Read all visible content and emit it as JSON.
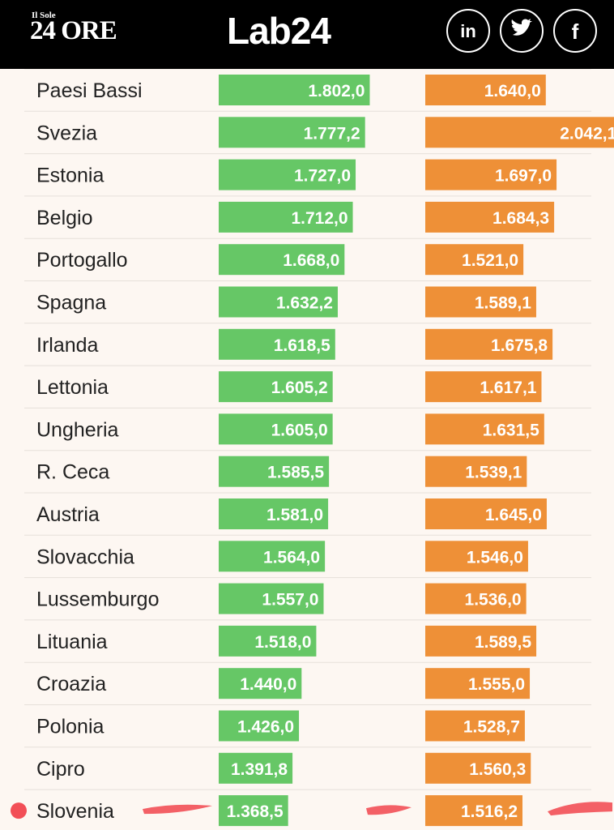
{
  "header": {
    "brand_small": "Il Sole",
    "brand_big": "24 ORE",
    "lab_logo": "Lab24",
    "social": [
      "linkedin-icon",
      "twitter-icon",
      "facebook-icon"
    ]
  },
  "colors": {
    "green": "#66c766",
    "orange": "#ee9037",
    "highlight": "#f24f57",
    "background": "#fdf7f2"
  },
  "chart_data": {
    "type": "bar",
    "categories": [
      "Paesi Bassi",
      "Svezia",
      "Estonia",
      "Belgio",
      "Portogallo",
      "Spagna",
      "Irlanda",
      "Lettonia",
      "Ungheria",
      "R. Ceca",
      "Austria",
      "Slovacchia",
      "Lussemburgo",
      "Lituania",
      "Croazia",
      "Polonia",
      "Cipro",
      "Slovenia"
    ],
    "series": [
      {
        "values": [
          1802.0,
          1777.2,
          1727.0,
          1712.0,
          1668.0,
          1632.2,
          1618.5,
          1605.2,
          1605.0,
          1585.5,
          1581.0,
          1564.0,
          1557.0,
          1518.0,
          1440.0,
          1426.0,
          1391.8,
          1368.5
        ],
        "labels": [
          "1.802,0",
          "1.777,2",
          "1.727,0",
          "1.712,0",
          "1.668,0",
          "1.632,2",
          "1.618,5",
          "1.605,2",
          "1.605,0",
          "1.585,5",
          "1.581,0",
          "1.564,0",
          "1.557,0",
          "1.518,0",
          "1.440,0",
          "1.426,0",
          "1.391,8",
          "1.368,5"
        ]
      },
      {
        "values": [
          1640.0,
          2042.1,
          1697.0,
          1684.3,
          1521.0,
          1589.1,
          1675.8,
          1617.1,
          1631.5,
          1539.1,
          1645.0,
          1546.0,
          1536.0,
          1589.5,
          1555.0,
          1528.7,
          1560.3,
          1516.2
        ],
        "labels": [
          "1.640,0",
          "2.042,1",
          "1.697,0",
          "1.684,3",
          "1.521,0",
          "1.589,1",
          "1.675,8",
          "1.617,1",
          "1.631,5",
          "1.539,1",
          "1.645,0",
          "1.546,0",
          "1.536,0",
          "1.589,5",
          "1.555,0",
          "1.528,7",
          "1.560,3",
          "1.516,2"
        ]
      }
    ],
    "highlighted_category": "Slovenia"
  }
}
